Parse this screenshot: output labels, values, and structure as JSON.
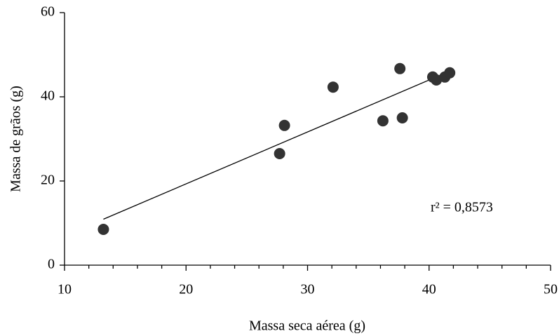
{
  "chart_data": {
    "type": "scatter",
    "xlabel": "Massa seca aérea (g)",
    "ylabel": "Massa de grãos (g)",
    "annotation": "r² = 0,8573",
    "x": [
      13.2,
      27.7,
      28.1,
      32.1,
      36.2,
      37.6,
      37.8,
      40.3,
      40.6,
      41.3,
      41.7
    ],
    "values": [
      8.5,
      26.5,
      33.2,
      42.3,
      34.3,
      46.7,
      35.0,
      44.7,
      44.0,
      44.7,
      45.7
    ],
    "color": "#333333",
    "trendline": true,
    "xlim": [
      10,
      50
    ],
    "xticks": [
      10,
      20,
      30,
      40,
      50
    ],
    "xminorticks": [
      12,
      14,
      16,
      18,
      22,
      24,
      26,
      28,
      32,
      34,
      36,
      38,
      42,
      44,
      46,
      48
    ],
    "ylim": [
      0,
      60
    ],
    "yticks": [
      0,
      20,
      40,
      60
    ],
    "grid": false
  }
}
